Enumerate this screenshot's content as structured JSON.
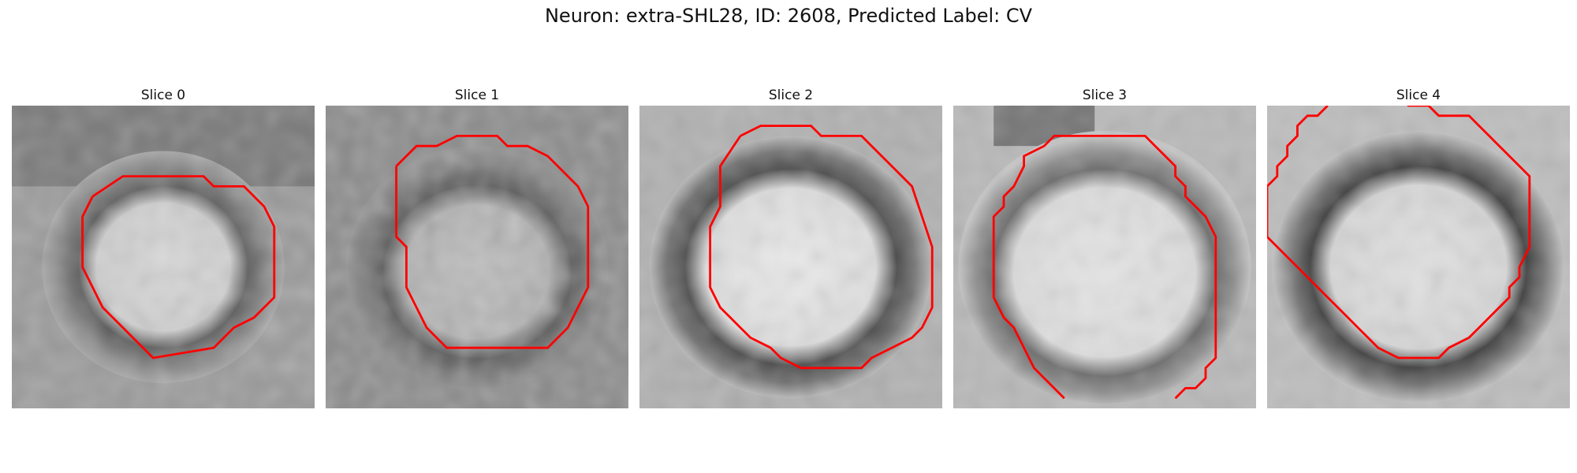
{
  "figure": {
    "title": "Neuron: extra-SHL28, ID: 2608, Predicted Label: CV"
  },
  "colors": {
    "contour": "#ff0000"
  },
  "panels": [
    {
      "title": "Slice 0"
    },
    {
      "title": "Slice 1"
    },
    {
      "title": "Slice 2"
    },
    {
      "title": "Slice 3"
    },
    {
      "title": "Slice 4"
    }
  ]
}
